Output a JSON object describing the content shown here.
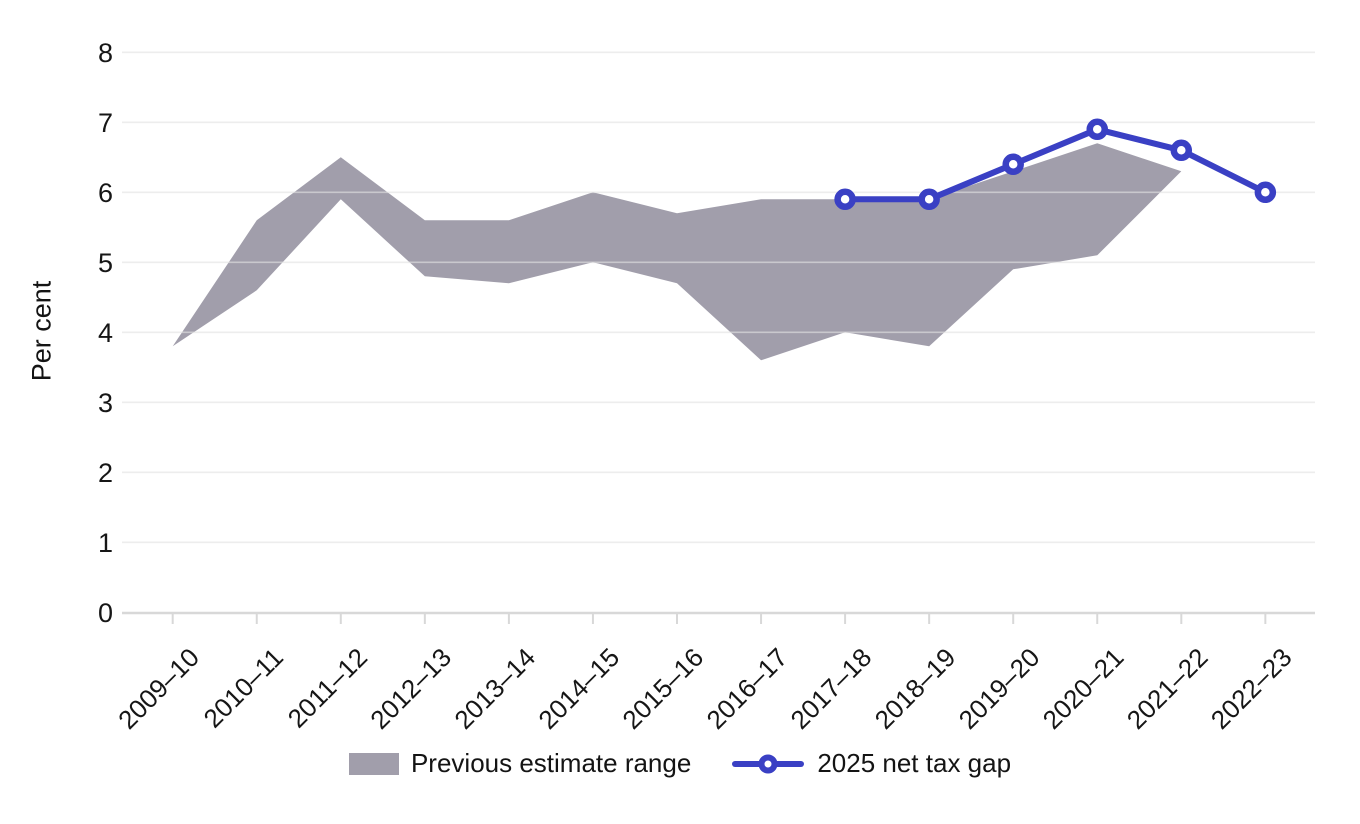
{
  "chart_data": {
    "type": "area+line",
    "title": "",
    "ylabel": "Per cent",
    "xlabel": "",
    "ylim": [
      0,
      8
    ],
    "y_ticks": [
      0,
      1,
      2,
      3,
      4,
      5,
      6,
      7,
      8
    ],
    "grid": "horizontal",
    "legend_position": "bottom",
    "categories": [
      "2009–10",
      "2010–11",
      "2011–12",
      "2012–13",
      "2013–14",
      "2014–15",
      "2015–16",
      "2016–17",
      "2017–18",
      "2018–19",
      "2019–20",
      "2020–21",
      "2021–22",
      "2022–23"
    ],
    "series": [
      {
        "name": "Previous estimate range",
        "type": "band",
        "color": "#a19eab",
        "start_index": 0,
        "upper": [
          3.8,
          5.6,
          6.5,
          5.6,
          5.6,
          6.0,
          5.7,
          5.9,
          5.9,
          5.9,
          6.3,
          6.7,
          6.3
        ],
        "lower": [
          3.8,
          4.6,
          5.9,
          4.8,
          4.7,
          5.0,
          4.7,
          3.6,
          4.0,
          3.8,
          4.9,
          5.1,
          6.3
        ]
      },
      {
        "name": "2025 net tax gap",
        "type": "line",
        "color": "#3a40c4",
        "marker": "open-circle",
        "start_index": 8,
        "values": [
          5.9,
          5.9,
          6.4,
          6.9,
          6.6,
          6.0
        ]
      }
    ],
    "style": {
      "gridline_color": "#e2e2e2",
      "axis_color": "#d8d8d8",
      "text_color": "#161616",
      "background": "#ffffff"
    }
  }
}
